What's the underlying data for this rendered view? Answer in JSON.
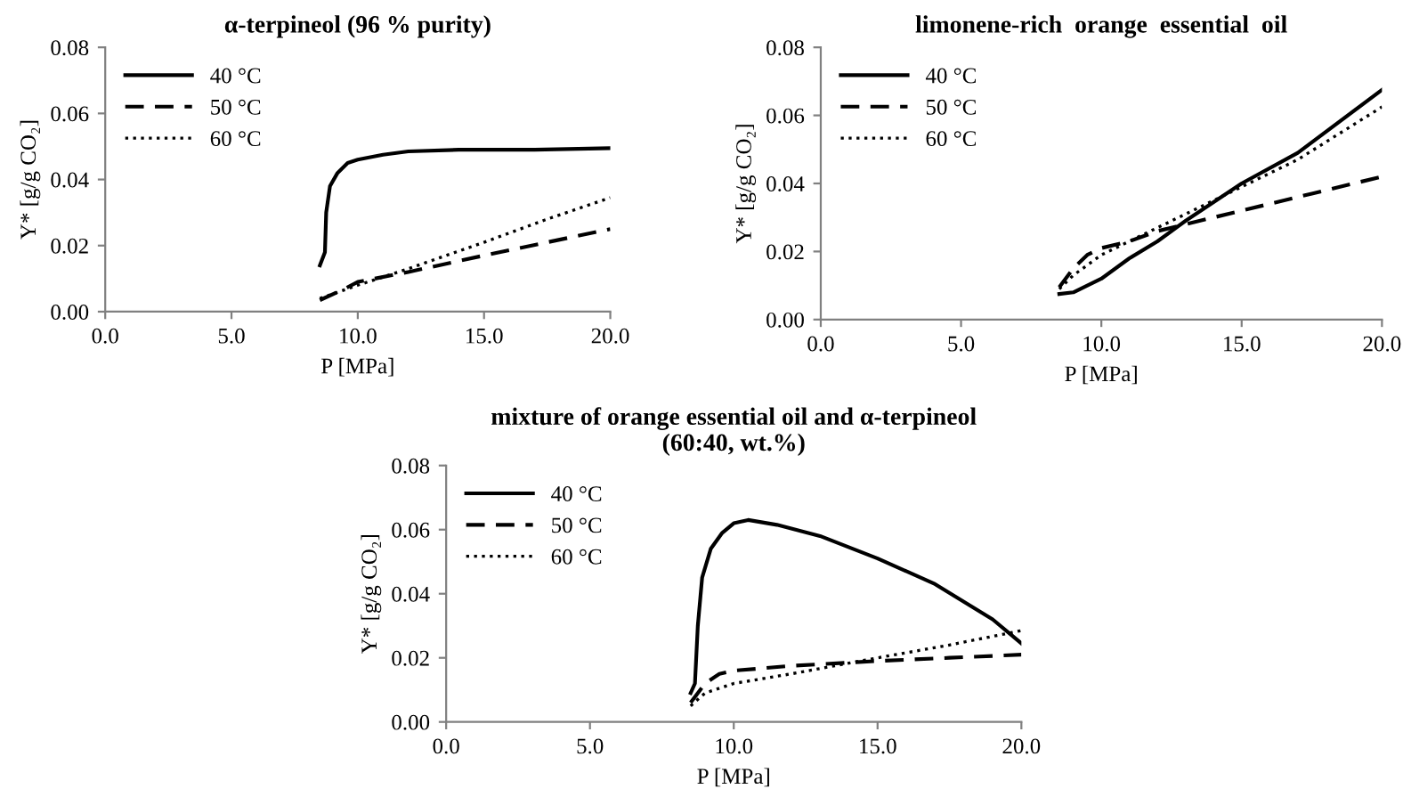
{
  "chart_data": [
    {
      "type": "line",
      "title": "α-terpineol (96 % purity)",
      "xlabel": "P [MPa]",
      "ylabel": "Y* [g/g CO₂]",
      "xlim": [
        0,
        20
      ],
      "ylim": [
        0,
        0.08
      ],
      "xticks": [
        {
          "value": 0,
          "label": "0.0"
        },
        {
          "value": 5,
          "label": "5.0"
        },
        {
          "value": 10,
          "label": "10.0"
        },
        {
          "value": 15,
          "label": "15.0"
        },
        {
          "value": 20,
          "label": "20.0"
        }
      ],
      "yticks": [
        {
          "value": 0,
          "label": "0.00"
        },
        {
          "value": 0.02,
          "label": "0.02"
        },
        {
          "value": 0.04,
          "label": "0.04"
        },
        {
          "value": 0.06,
          "label": "0.06"
        },
        {
          "value": 0.08,
          "label": "0.08"
        }
      ],
      "grid": false,
      "legend": "top left",
      "series": [
        {
          "name": "40 °C",
          "color": "#000000",
          "line_style": "solid",
          "x": [
            8.5,
            8.7,
            8.75,
            8.9,
            9.2,
            9.6,
            10,
            11,
            12,
            14,
            17,
            20
          ],
          "values": [
            0.014,
            0.018,
            0.03,
            0.038,
            0.042,
            0.045,
            0.046,
            0.0475,
            0.0485,
            0.049,
            0.049,
            0.0495
          ]
        },
        {
          "name": "50 °C",
          "color": "#000000",
          "line_style": "dashed",
          "x": [
            8.5,
            9.5,
            10,
            12,
            15,
            17.5,
            20
          ],
          "values": [
            0.0035,
            0.007,
            0.009,
            0.012,
            0.017,
            0.021,
            0.025
          ]
        },
        {
          "name": "60 °C",
          "color": "#000000",
          "line_style": "dotted",
          "x": [
            8.5,
            10,
            12,
            15,
            17.5,
            20
          ],
          "values": [
            0.004,
            0.008,
            0.013,
            0.021,
            0.028,
            0.0345
          ]
        }
      ]
    },
    {
      "type": "line",
      "title": "limonene-rich  orange  essential  oil",
      "xlabel": "P [MPa]",
      "ylabel": "Y* [g/g CO₂]",
      "xlim": [
        0,
        20
      ],
      "ylim": [
        0,
        0.08
      ],
      "xticks": [
        {
          "value": 0,
          "label": "0.0"
        },
        {
          "value": 5,
          "label": "5.0"
        },
        {
          "value": 10,
          "label": "10.0"
        },
        {
          "value": 15,
          "label": "15.0"
        },
        {
          "value": 20,
          "label": "20.0"
        }
      ],
      "yticks": [
        {
          "value": 0,
          "label": "0.00"
        },
        {
          "value": 0.02,
          "label": "0.02"
        },
        {
          "value": 0.04,
          "label": "0.04"
        },
        {
          "value": 0.06,
          "label": "0.06"
        },
        {
          "value": 0.08,
          "label": "0.08"
        }
      ],
      "grid": false,
      "legend": "top left",
      "series": [
        {
          "name": "40 °C",
          "color": "#000000",
          "line_style": "solid",
          "x": [
            8.5,
            9,
            10,
            11,
            12,
            13,
            15,
            17,
            20
          ],
          "values": [
            0.0075,
            0.008,
            0.012,
            0.018,
            0.023,
            0.029,
            0.04,
            0.049,
            0.0675
          ]
        },
        {
          "name": "50 °C",
          "color": "#000000",
          "line_style": "dashed",
          "x": [
            8.5,
            9,
            9.5,
            10,
            11,
            12,
            13,
            15,
            17.5,
            20
          ],
          "values": [
            0.0095,
            0.015,
            0.019,
            0.021,
            0.023,
            0.026,
            0.028,
            0.032,
            0.037,
            0.042
          ]
        },
        {
          "name": "60 °C",
          "color": "#000000",
          "line_style": "dotted",
          "x": [
            8.5,
            9,
            9.5,
            10,
            11,
            12,
            13,
            15,
            17,
            20
          ],
          "values": [
            0.009,
            0.013,
            0.016,
            0.019,
            0.023,
            0.027,
            0.031,
            0.039,
            0.047,
            0.0625
          ]
        }
      ]
    },
    {
      "type": "line",
      "title": "mixture of orange essential oil and α-terpineol\n(60:40, wt.%)",
      "xlabel": "P [MPa]",
      "ylabel": "Y* [g/g CO₂]",
      "xlim": [
        0,
        20
      ],
      "ylim": [
        0,
        0.08
      ],
      "xticks": [
        {
          "value": 0,
          "label": "0.0"
        },
        {
          "value": 5,
          "label": "5.0"
        },
        {
          "value": 10,
          "label": "10.0"
        },
        {
          "value": 15,
          "label": "15.0"
        },
        {
          "value": 20,
          "label": "20.0"
        }
      ],
      "yticks": [
        {
          "value": 0,
          "label": "0.00"
        },
        {
          "value": 0.02,
          "label": "0.02"
        },
        {
          "value": 0.04,
          "label": "0.04"
        },
        {
          "value": 0.06,
          "label": "0.06"
        },
        {
          "value": 0.08,
          "label": "0.08"
        }
      ],
      "grid": false,
      "legend": "top left",
      "series": [
        {
          "name": "40 °C",
          "color": "#000000",
          "line_style": "solid",
          "x": [
            8.5,
            8.65,
            8.75,
            8.9,
            9.2,
            9.6,
            10,
            10.5,
            11.5,
            13,
            15,
            17,
            19,
            20
          ],
          "values": [
            0.009,
            0.012,
            0.03,
            0.045,
            0.054,
            0.059,
            0.062,
            0.063,
            0.0615,
            0.058,
            0.051,
            0.043,
            0.032,
            0.0245
          ]
        },
        {
          "name": "50 °C",
          "color": "#000000",
          "line_style": "dashed",
          "x": [
            8.5,
            9,
            9.5,
            10,
            12,
            15,
            17.5,
            20
          ],
          "values": [
            0.006,
            0.012,
            0.015,
            0.016,
            0.0175,
            0.019,
            0.02,
            0.021
          ]
        },
        {
          "name": "60 °C",
          "color": "#000000",
          "line_style": "dotted",
          "x": [
            8.5,
            9,
            10,
            12,
            15,
            17.5,
            20
          ],
          "values": [
            0.005,
            0.009,
            0.012,
            0.015,
            0.02,
            0.024,
            0.0285
          ]
        }
      ]
    }
  ]
}
